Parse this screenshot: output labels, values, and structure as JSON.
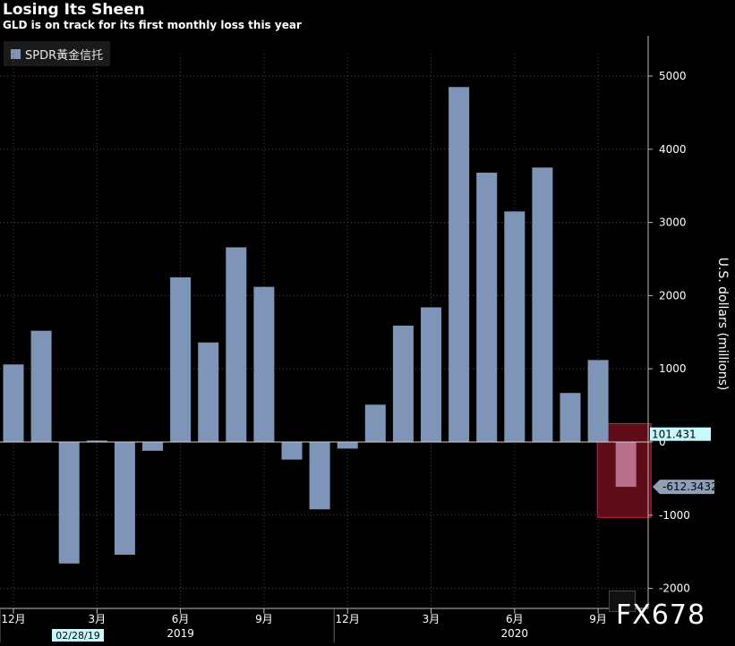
{
  "chart_data": {
    "type": "bar",
    "title": "Losing Its Sheen",
    "subtitle": "GLD is on track for its first monthly loss this year",
    "legend": [
      "SPDR黃金信托"
    ],
    "ylabel": "U.S. dollars (millions)",
    "ylim": [
      -2000,
      5500
    ],
    "yticks": [
      5000,
      4000,
      3000,
      2000,
      1000,
      0,
      -1000,
      -2000
    ],
    "ytick_labels": [
      "5000",
      "4000",
      "3000",
      "2000",
      "1000",
      "0",
      "-1000",
      "-2000"
    ],
    "categories": [
      "2018-12",
      "2019-01",
      "2019-02",
      "2019-03",
      "2019-04",
      "2019-05",
      "2019-06",
      "2019-07",
      "2019-08",
      "2019-09",
      "2019-10",
      "2019-11",
      "2019-12",
      "2020-01",
      "2020-02",
      "2020-03",
      "2020-04",
      "2020-05",
      "2020-06",
      "2020-07",
      "2020-08",
      "2020-09",
      "2020-10"
    ],
    "values": [
      1060,
      1520,
      -1660,
      20,
      -1540,
      -120,
      2250,
      1360,
      2660,
      2120,
      -240,
      -920,
      -90,
      510,
      1590,
      1840,
      4850,
      3680,
      3150,
      3750,
      670,
      1120,
      -612.3432
    ],
    "highlight_index": 22,
    "xtick_labels": [
      {
        "index": 0,
        "label": "12月"
      },
      {
        "index": 3,
        "label": "3月"
      },
      {
        "index": 6,
        "label": "6月"
      },
      {
        "index": 9,
        "label": "9月"
      },
      {
        "index": 12,
        "label": "12月"
      },
      {
        "index": 15,
        "label": "3月"
      },
      {
        "index": 18,
        "label": "6月"
      },
      {
        "index": 21,
        "label": "9月"
      }
    ],
    "year_labels": [
      {
        "index": 6,
        "label": "2019"
      },
      {
        "index": 18,
        "label": "2020"
      }
    ],
    "date_marker": "02/28/19",
    "value_labels": [
      {
        "label": "101.431",
        "value": 101.431
      },
      {
        "label": "-612.3432",
        "value": -612.3432
      }
    ]
  },
  "colors": {
    "bar": "#7f95b8",
    "highlight_bar": "#b86f8c",
    "highlight_box_fill": "#6e0f1c",
    "highlight_box_stroke": "#d02038",
    "grid": "#4a4a4a",
    "background": "#000000",
    "cyan_label": "#c8f8ff",
    "grey_label": "#8ea0b8"
  },
  "watermark": "FX678"
}
